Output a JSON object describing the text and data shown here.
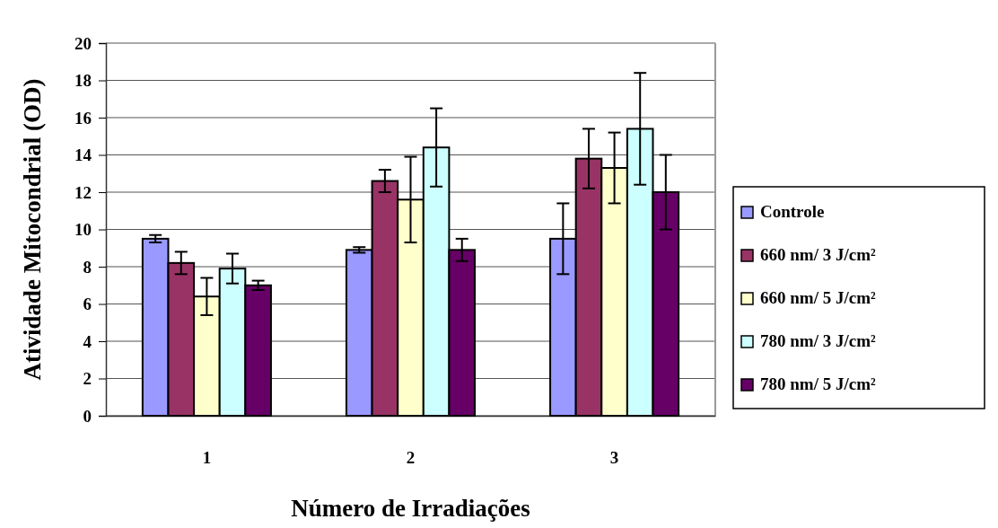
{
  "chart_data": {
    "type": "bar",
    "xlabel": "Número de Irradiações",
    "ylabel": "Atividade Mitocondrial (OD)",
    "categories": [
      "1",
      "2",
      "3"
    ],
    "series": [
      {
        "name": "Controle",
        "color": "#9999ff",
        "values": [
          9.5,
          8.9,
          9.5
        ],
        "errors": [
          0.2,
          0.15,
          1.9
        ]
      },
      {
        "name": "660 nm/ 3 J/cm²",
        "color": "#993366",
        "values": [
          8.2,
          12.6,
          13.8
        ],
        "errors": [
          0.6,
          0.6,
          1.6
        ]
      },
      {
        "name": "660 nm/ 5 J/cm²",
        "color": "#ffffcc",
        "values": [
          6.4,
          11.6,
          13.3
        ],
        "errors": [
          1.0,
          2.3,
          1.9
        ]
      },
      {
        "name": "780 nm/ 3 J/cm²",
        "color": "#ccffff",
        "values": [
          7.9,
          14.4,
          15.4
        ],
        "errors": [
          0.8,
          2.1,
          3.0
        ]
      },
      {
        "name": "780 nm/ 5 J/cm²",
        "color": "#660066",
        "values": [
          7.0,
          8.9,
          12.0
        ],
        "errors": [
          0.25,
          0.6,
          2.0
        ]
      }
    ],
    "ylim": [
      0,
      20
    ],
    "yticks": [
      0,
      2,
      4,
      6,
      8,
      10,
      12,
      14,
      16,
      18,
      20
    ],
    "grid": "y",
    "legend": "right"
  }
}
